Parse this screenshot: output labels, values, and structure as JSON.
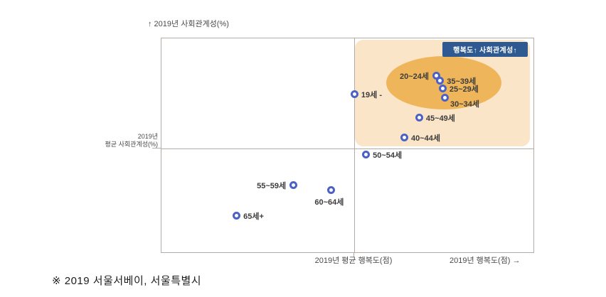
{
  "footnote": "※ 2019 서울서베이, 서울특별시",
  "colors": {
    "point_blue": "#4b61c6",
    "quadrant_fill": "#fbe5c8",
    "cluster_ellipse": "#efb55a",
    "badge_bg": "#2e5a91",
    "badge_text": "#ffffff",
    "axis_line": "#b3aca6",
    "label_text": "#3c3c3c"
  },
  "chart_data": {
    "type": "scatter",
    "title": "",
    "y_axis": {
      "top_label": "↑  2019년 사회관계성(%)",
      "mid_label_line1": "2019년",
      "mid_label_line2": "평균 사회관계성(%)"
    },
    "x_axis": {
      "mid_label": "2019년 평균 행복도(점)",
      "end_label": "2019년 행복도(점) →"
    },
    "quadrant_badge": "행복도↑ 사회관계성↑",
    "legend": "off",
    "grid": "off",
    "points": [
      {
        "label": "19세 -",
        "fx": 0.518,
        "fy": 0.259,
        "label_side": "right"
      },
      {
        "label": "20~24세",
        "fx": 0.738,
        "fy": 0.173,
        "label_side": "left"
      },
      {
        "label": "35~39세",
        "fx": 0.748,
        "fy": 0.196,
        "label_side": "right"
      },
      {
        "label": "25~29세",
        "fx": 0.755,
        "fy": 0.233,
        "label_side": "right"
      },
      {
        "label": "30~34세",
        "fx": 0.761,
        "fy": 0.276,
        "label_side": "right-below"
      },
      {
        "label": "45~49세",
        "fx": 0.692,
        "fy": 0.369,
        "label_side": "right"
      },
      {
        "label": "40~44세",
        "fx": 0.652,
        "fy": 0.462,
        "label_side": "right"
      },
      {
        "label": "50~54세",
        "fx": 0.549,
        "fy": 0.542,
        "label_side": "right"
      },
      {
        "label": "55~59세",
        "fx": 0.354,
        "fy": 0.684,
        "label_side": "left"
      },
      {
        "label": "60~64세",
        "fx": 0.455,
        "fy": 0.708,
        "label_side": "below"
      },
      {
        "label": "65세+",
        "fx": 0.201,
        "fy": 0.827,
        "label_side": "right"
      }
    ]
  }
}
